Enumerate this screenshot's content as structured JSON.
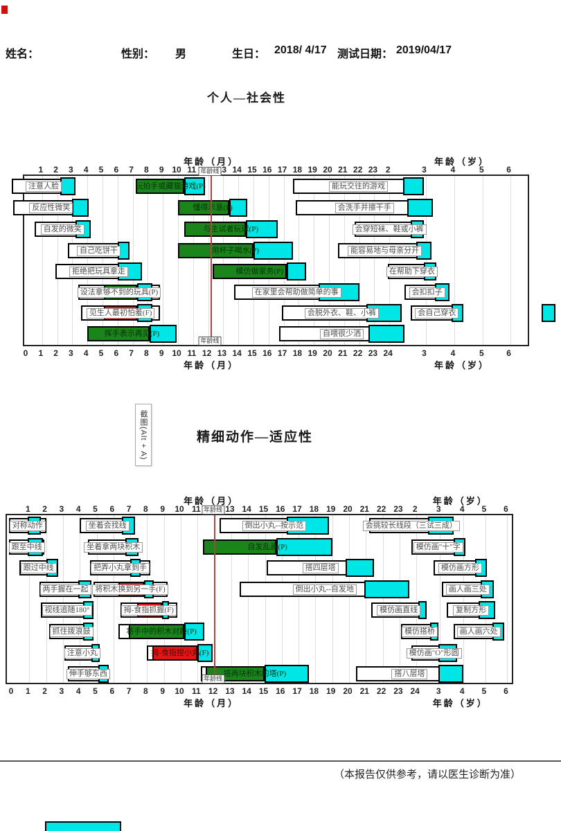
{
  "header": {
    "name_label": "姓名：",
    "gender_label": "性别：",
    "gender_value": "男",
    "birthday_label": "生日：",
    "birthday_value": "2018/ 4/17",
    "test_date_label": "测试日期：",
    "test_date_value": "2019/04/17"
  },
  "screenshot_tooltip": "截图(Alt + A)",
  "footer": {
    "note": "（本报告仅供参考，请以医生诊断为准）"
  },
  "colors": {
    "pass_green": "#1B841B",
    "fail_red": "#E01616",
    "percentile_cyan": "#00E5E5",
    "age_line_red": "#B5403E",
    "corner_mark_red": "#CC1111"
  },
  "chart_data": [
    {
      "type": "gantt",
      "id": "personal_social",
      "title": "个人—社会性",
      "month_axis_label": "年龄（月）",
      "year_axis_label": "年龄（岁）",
      "age_line": {
        "label": "年龄线",
        "u": 12.2
      },
      "top_ticks": {
        "months": [
          1,
          2,
          3,
          4,
          5,
          6,
          7,
          8,
          9,
          10,
          11,
          13,
          14,
          15,
          16,
          17,
          18,
          19,
          20,
          21,
          22,
          23
        ],
        "years": [
          {
            "t": "2",
            "u": 24
          },
          {
            "t": "3",
            "u": 26.4
          },
          {
            "t": "4",
            "u": 28.3
          },
          {
            "t": "5",
            "u": 30.2
          },
          {
            "t": "6",
            "u": 32.0
          }
        ]
      },
      "bottom_ticks": {
        "months": [
          0,
          1,
          2,
          3,
          4,
          5,
          6,
          7,
          8,
          9,
          10,
          11,
          12,
          13,
          14,
          15,
          16,
          17,
          18,
          19,
          20,
          21,
          22,
          23,
          24
        ],
        "years": [
          {
            "t": "3",
            "u": 26.4
          },
          {
            "t": "4",
            "u": 28.3
          },
          {
            "t": "5",
            "u": 30.2
          },
          {
            "t": "6",
            "u": 32.0
          }
        ]
      },
      "rows": [
        [
          {
            "label": "注意人脸",
            "start": -1.0,
            "end": 3.2,
            "cyan": [
              2.2,
              3.2
            ],
            "boxed": true
          },
          {
            "label": "玩拍手或藏猫游戏(P)",
            "start": 7.2,
            "end": 11.8,
            "fill": "green",
            "cyan": [
              10.4,
              11.8
            ]
          },
          {
            "label": "能玩交往的游戏",
            "start": 17.6,
            "end": 26.3,
            "cyan": [
              24.9,
              26.3
            ],
            "boxed": true
          }
        ],
        [
          {
            "label": "反应性微笑",
            "start": -0.9,
            "end": 4.1,
            "cyan": [
              3.0,
              4.1
            ],
            "boxed": true
          },
          {
            "label": "懂得示意(P)",
            "start": 10.0,
            "end": 14.6,
            "fill": "green",
            "cyan": [
              13.4,
              14.6
            ]
          },
          {
            "label": "会洗手并擦干手",
            "start": 17.8,
            "end": 26.9,
            "cyan": [
              25.2,
              26.9
            ],
            "boxed": true
          }
        ],
        [
          {
            "label": "自发的微笑",
            "start": 0.5,
            "end": 4.2,
            "cyan": [
              3.2,
              4.2
            ],
            "boxed": true
          },
          {
            "label": "与主试者玩球(P)",
            "start": 10.4,
            "end": 16.6,
            "fill": "green",
            "cyan": [
              14.5,
              16.6
            ]
          },
          {
            "label": "会穿短袜、鞋或小裤",
            "start": 21.7,
            "end": 26.3,
            "cyan": [
              25.4,
              26.3
            ],
            "boxed": true
          }
        ],
        [
          {
            "label": "自己吃饼干",
            "start": 2.7,
            "end": 6.8,
            "cyan": [
              6.0,
              6.8
            ],
            "boxed": true
          },
          {
            "label": "用杯子喝水(P)",
            "start": 10.0,
            "end": 17.6,
            "fill": "green",
            "cyan": [
              15.0,
              17.6
            ]
          },
          {
            "label": "能容易地与母亲分开",
            "start": 20.6,
            "end": 26.8,
            "cyan": [
              25.8,
              26.8
            ],
            "boxed": true
          }
        ],
        [
          {
            "label": "拒绝把玩具拿走",
            "start": 1.9,
            "end": 7.6,
            "cyan": [
              6.0,
              7.6
            ],
            "boxed": true
          },
          {
            "label": "模仿做家务(P)",
            "start": 12.3,
            "end": 18.5,
            "fill": "green",
            "cyan": [
              17.2,
              18.5
            ]
          },
          {
            "label": "在帮助下穿衣",
            "start": 23.9,
            "end": 27.1,
            "cyan": [
              26.3,
              27.1
            ],
            "boxed": true
          }
        ],
        [
          {
            "label": "设法拿够不到的玩具(P)",
            "start": 3.4,
            "end": 8.8,
            "fill": "green",
            "fill_range": [
              5.1,
              7.3
            ],
            "cyan": [
              7.3,
              8.3
            ],
            "boxed": true
          },
          {
            "label": "在家里会帮助做简单的事",
            "start": 13.7,
            "end": 22.0,
            "cyan": [
              19.3,
              22.0
            ],
            "boxed": true
          },
          {
            "label": "会扣扣子",
            "start": 25.0,
            "end": 28.0,
            "cyan": [
              27.0,
              28.0
            ],
            "boxed": true
          }
        ],
        [
          {
            "label": "见生人最初怕羞(F)",
            "start": 3.6,
            "end": 8.8,
            "fill": "red",
            "fill_range": [
              5.1,
              7.3
            ],
            "cyan": [
              7.3,
              8.3
            ],
            "boxed": true
          },
          {
            "label": "会脱外衣、鞋、小裤",
            "start": 16.9,
            "end": 24.8,
            "cyan": [
              22.5,
              24.8
            ],
            "boxed": true
          },
          {
            "label": "会自己穿衣",
            "start": 25.4,
            "end": 28.9,
            "cyan": [
              28.1,
              28.9
            ],
            "boxed": true
          },
          {
            "label": "",
            "start": 34.1,
            "end": 35.0,
            "cyan": [
              34.1,
              35.0
            ]
          }
        ],
        [
          {
            "label": "挥手表示再见(P)",
            "start": 4.0,
            "end": 9.9,
            "fill": "green",
            "cyan": [
              8.1,
              9.9
            ]
          },
          {
            "label": "自喂很少洒",
            "start": 16.7,
            "end": 25.0,
            "cyan": [
              22.6,
              25.0
            ],
            "boxed": true
          }
        ]
      ]
    },
    {
      "type": "gantt",
      "id": "fine_motor_adaptive",
      "title": "精细动作—适应性",
      "month_axis_label": "年龄（月）",
      "year_axis_label": "年龄（岁）",
      "age_line": {
        "label": "年龄线",
        "u": 12.0
      },
      "top_ticks": {
        "months": [
          1,
          2,
          3,
          4,
          5,
          6,
          7,
          8,
          9,
          10,
          11,
          13,
          14,
          15,
          16,
          17,
          18,
          19,
          20,
          21,
          22,
          23
        ],
        "years": [
          {
            "t": "2",
            "u": 24
          },
          {
            "t": "3",
            "u": 25.4
          },
          {
            "t": "4",
            "u": 26.8
          },
          {
            "t": "5",
            "u": 28.1
          },
          {
            "t": "6",
            "u": 29.4
          }
        ]
      },
      "bottom_ticks": {
        "months": [
          0,
          1,
          2,
          3,
          4,
          5,
          6,
          7,
          8,
          9,
          10,
          11,
          12,
          13,
          14,
          15,
          16,
          17,
          18,
          19,
          20,
          21,
          22,
          23,
          24
        ],
        "years": [
          {
            "t": "3",
            "u": 25.4
          },
          {
            "t": "4",
            "u": 26.8
          },
          {
            "t": "5",
            "u": 28.1
          },
          {
            "t": "6",
            "u": 29.4
          }
        ]
      },
      "rows": [
        [
          {
            "label": "对称动作",
            "start": -0.2,
            "end": 2.0,
            "cyan": [
              0.9,
              1.7
            ],
            "boxed": true
          },
          {
            "label": "坐着会找线",
            "start": 4.0,
            "end": 7.3,
            "cyan": [
              6.5,
              7.3
            ],
            "boxed": true
          },
          {
            "label": "倒出小丸--按示范",
            "start": 12.3,
            "end": 18.8,
            "cyan": [
              16.3,
              18.8
            ],
            "boxed": true
          },
          {
            "label": "会挑较长线段（三试三成）",
            "start": 21.2,
            "end": 26.2,
            "cyan": [
              24.7,
              26.2
            ],
            "boxed": true
          }
        ],
        [
          {
            "label": "跟至中线",
            "start": -0.2,
            "end": 1.9,
            "cyan": [
              0.9,
              1.8
            ],
            "boxed": true
          },
          {
            "label": "坐着拿两块积木",
            "start": 4.5,
            "end": 7.5,
            "cyan": [
              6.7,
              7.5
            ],
            "boxed": true
          },
          {
            "label": "自发乱画(P)",
            "start": 11.3,
            "end": 19.0,
            "fill": "green",
            "cyan": [
              15.7,
              19.0
            ]
          },
          {
            "label": "模仿画\"十\"字",
            "start": 23.7,
            "end": 26.9,
            "cyan": [
              26.2,
              26.9
            ],
            "boxed": true
          }
        ],
        [
          {
            "label": "跟过中线",
            "start": 0.4,
            "end": 2.7,
            "cyan": [
              2.0,
              2.7
            ],
            "boxed": true
          },
          {
            "label": "把弄小丸拿到手",
            "start": 4.6,
            "end": 8.2,
            "cyan": [
              7.0,
              7.6
            ],
            "boxed": true
          },
          {
            "label": "搭四层塔",
            "start": 15.1,
            "end": 21.5,
            "cyan": [
              19.8,
              21.5
            ],
            "boxed": true
          },
          {
            "label": "模仿画方形",
            "start": 25.0,
            "end": 28.2,
            "cyan": [
              27.5,
              28.2
            ],
            "boxed": true
          }
        ],
        [
          {
            "label": "两手握在一起",
            "start": 1.6,
            "end": 4.7,
            "cyan": [
              3.9,
              4.7
            ],
            "boxed": true
          },
          {
            "label": "将积木换到另一手(F)",
            "start": 4.8,
            "end": 9.2,
            "fill": "red",
            "fill_range": [
              6.3,
              7.8
            ],
            "cyan": [
              7.8,
              8.4
            ],
            "boxed": true
          },
          {
            "label": "倒出小丸--自发地",
            "start": 13.5,
            "end": 23.6,
            "cyan": [
              20.9,
              23.6
            ],
            "boxed": true
          },
          {
            "label": "画人画三处",
            "start": 25.5,
            "end": 28.6,
            "cyan": [
              27.8,
              28.6
            ],
            "boxed": true
          }
        ],
        [
          {
            "label": "视线追随180°",
            "start": 1.7,
            "end": 4.8,
            "cyan": [
              4.2,
              4.8
            ],
            "boxed": true
          },
          {
            "label": "拇-食指抓握(F)",
            "start": 6.4,
            "end": 9.8,
            "fill": "red",
            "fill_range": [
              7.4,
              8.9
            ],
            "cyan": [
              8.9,
              9.3
            ],
            "boxed": true
          },
          {
            "label": "模仿画直线",
            "start": 21.3,
            "end": 24.6,
            "cyan": [
              24.1,
              24.6
            ],
            "boxed": true
          },
          {
            "label": "复制方形",
            "start": 25.8,
            "end": 28.7,
            "cyan": [
              27.7,
              28.7
            ],
            "boxed": true
          }
        ],
        [
          {
            "label": "抓住拨浪鼓",
            "start": 2.2,
            "end": 4.8,
            "cyan": [
              4.2,
              4.8
            ],
            "boxed": true
          },
          {
            "label": "将手中的积木对敲(P)",
            "start": 6.3,
            "end": 11.4,
            "fill": "green",
            "fill_range": [
              6.9,
              10.2
            ],
            "cyan": [
              10.2,
              11.4
            ]
          },
          {
            "label": "模仿搭桥",
            "start": 23.1,
            "end": 25.3,
            "cyan": [
              24.8,
              25.3
            ],
            "boxed": true
          },
          {
            "label": "画人画六处",
            "start": 26.2,
            "end": 29.2,
            "cyan": [
              28.5,
              29.2
            ],
            "boxed": true
          }
        ],
        [
          {
            "label": "注意小丸",
            "start": 3.1,
            "end": 5.2,
            "cyan": [
              4.7,
              5.2
            ],
            "boxed": true
          },
          {
            "label": "拇-食指捏小丸(F)",
            "start": 8.0,
            "end": 11.9,
            "fill": "red",
            "fill_range": [
              8.3,
              11.0
            ],
            "cyan": [
              11.0,
              11.9
            ]
          },
          {
            "label": "模仿画\"O\"形圆",
            "start": 23.7,
            "end": 26.4,
            "cyan": [
              25.3,
              26.4
            ],
            "boxed": true
          }
        ],
        [
          {
            "label": "伸手够东西",
            "start": 3.3,
            "end": 5.7,
            "cyan": [
              5.1,
              5.7
            ],
            "boxed": true
          },
          {
            "label": "搭两块积木的塔(P)",
            "start": 11.2,
            "end": 17.6,
            "fill": "green",
            "fill_range": [
              11.5,
              15.0
            ],
            "cyan": [
              15.0,
              17.6
            ]
          },
          {
            "label": "搭八层塔",
            "start": 20.4,
            "end": 26.8,
            "cyan": [
              25.3,
              26.8
            ],
            "boxed": true
          }
        ]
      ]
    }
  ]
}
